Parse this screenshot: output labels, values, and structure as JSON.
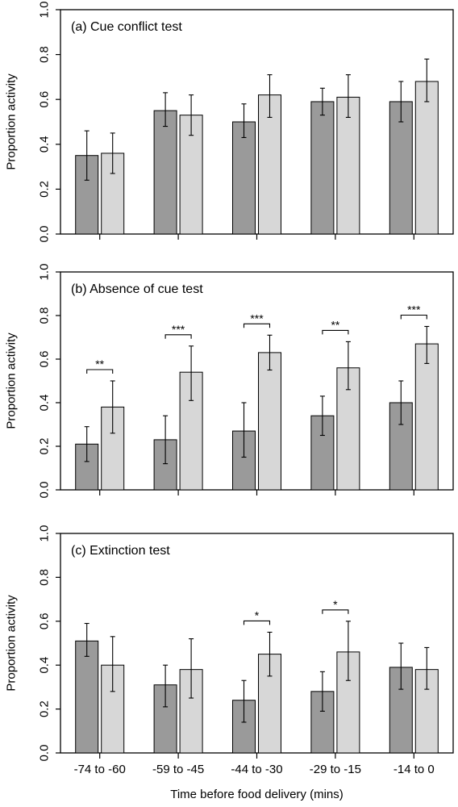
{
  "colors": {
    "dark_bar": "#9a9a9a",
    "light_bar": "#d7d7d7",
    "axis": "#000000"
  },
  "chart_data": [
    {
      "type": "bar",
      "title": "(a) Cue conflict test",
      "ylabel": "Proportion activity",
      "xlabel": "",
      "ylim": [
        0,
        1
      ],
      "yticks": [
        "0.0",
        "0.2",
        "0.4",
        "0.6",
        "0.8",
        "1.0"
      ],
      "categories": [
        "-74 to -60",
        "-59 to -45",
        "-44 to -30",
        "-29 to -15",
        "-14 to 0"
      ],
      "show_category_labels": false,
      "series": [
        {
          "values": [
            0.35,
            0.55,
            0.5,
            0.59,
            0.59
          ],
          "err_low": [
            0.24,
            0.48,
            0.43,
            0.53,
            0.5
          ],
          "err_high": [
            0.46,
            0.63,
            0.58,
            0.65,
            0.68
          ]
        },
        {
          "values": [
            0.36,
            0.53,
            0.62,
            0.61,
            0.68
          ],
          "err_low": [
            0.27,
            0.44,
            0.52,
            0.52,
            0.59
          ],
          "err_high": [
            0.45,
            0.62,
            0.71,
            0.71,
            0.78
          ]
        }
      ],
      "significance": [
        "",
        "",
        "",
        "",
        ""
      ]
    },
    {
      "type": "bar",
      "title": "(b) Absence of cue test",
      "ylabel": "Proportion activity",
      "xlabel": "",
      "ylim": [
        0,
        1
      ],
      "yticks": [
        "0.0",
        "0.2",
        "0.4",
        "0.6",
        "0.8",
        "1.0"
      ],
      "categories": [
        "-74 to -60",
        "-59 to -45",
        "-44 to -30",
        "-29 to -15",
        "-14 to 0"
      ],
      "show_category_labels": false,
      "series": [
        {
          "values": [
            0.21,
            0.23,
            0.27,
            0.34,
            0.4
          ],
          "err_low": [
            0.13,
            0.12,
            0.15,
            0.25,
            0.3
          ],
          "err_high": [
            0.29,
            0.34,
            0.4,
            0.43,
            0.5
          ]
        },
        {
          "values": [
            0.38,
            0.54,
            0.63,
            0.56,
            0.67
          ],
          "err_low": [
            0.26,
            0.41,
            0.55,
            0.46,
            0.58
          ],
          "err_high": [
            0.5,
            0.66,
            0.71,
            0.68,
            0.75
          ]
        }
      ],
      "significance": [
        "**",
        "***",
        "***",
        "**",
        "***"
      ]
    },
    {
      "type": "bar",
      "title": "(c) Extinction test",
      "ylabel": "Proportion activity",
      "xlabel": "Time before food delivery (mins)",
      "ylim": [
        0,
        1
      ],
      "yticks": [
        "0.0",
        "0.2",
        "0.4",
        "0.6",
        "0.8",
        "1.0"
      ],
      "categories": [
        "-74 to -60",
        "-59 to -45",
        "-44 to -30",
        "-29 to -15",
        "-14 to 0"
      ],
      "show_category_labels": true,
      "series": [
        {
          "values": [
            0.51,
            0.31,
            0.24,
            0.28,
            0.39
          ],
          "err_low": [
            0.44,
            0.21,
            0.14,
            0.19,
            0.29
          ],
          "err_high": [
            0.59,
            0.4,
            0.33,
            0.37,
            0.5
          ]
        },
        {
          "values": [
            0.4,
            0.38,
            0.45,
            0.46,
            0.38
          ],
          "err_low": [
            0.28,
            0.25,
            0.35,
            0.33,
            0.29
          ],
          "err_high": [
            0.53,
            0.52,
            0.55,
            0.6,
            0.48
          ]
        }
      ],
      "significance": [
        "",
        "",
        "*",
        "*",
        ""
      ]
    }
  ]
}
